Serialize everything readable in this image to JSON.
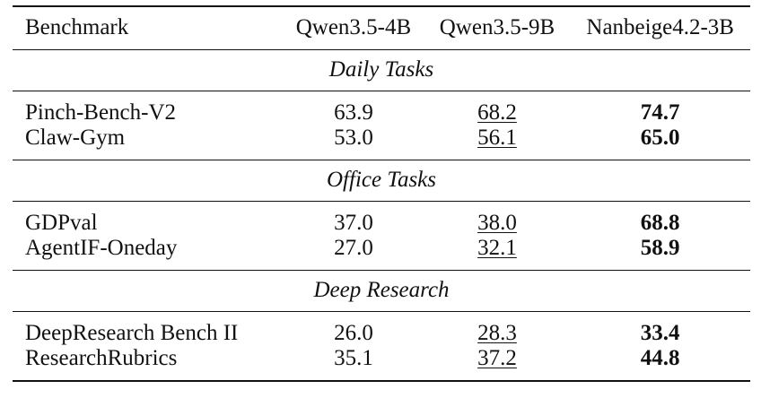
{
  "table": {
    "headers": [
      "Benchmark",
      "Qwen3.5-4B",
      "Qwen3.5-9B",
      "Nanbeige4.2-3B"
    ],
    "sections": [
      {
        "title": "Daily Tasks",
        "rows": [
          {
            "benchmark": "Pinch-Bench-V2",
            "qwen4b": "63.9",
            "qwen9b": "68.2",
            "nanbeige": "74.7"
          },
          {
            "benchmark": "Claw-Gym",
            "qwen4b": "53.0",
            "qwen9b": "56.1",
            "nanbeige": "65.0"
          }
        ]
      },
      {
        "title": "Office Tasks",
        "rows": [
          {
            "benchmark": "GDPval",
            "qwen4b": "37.0",
            "qwen9b": "38.0",
            "nanbeige": "68.8"
          },
          {
            "benchmark": "AgentIF-Oneday",
            "qwen4b": "27.0",
            "qwen9b": "32.1",
            "nanbeige": "58.9"
          }
        ]
      },
      {
        "title": "Deep Research",
        "rows": [
          {
            "benchmark": "DeepResearch Bench II",
            "qwen4b": "26.0",
            "qwen9b": "28.3",
            "nanbeige": "33.4"
          },
          {
            "benchmark": "ResearchRubrics",
            "qwen4b": "35.1",
            "qwen9b": "37.2",
            "nanbeige": "44.8"
          }
        ]
      }
    ]
  }
}
